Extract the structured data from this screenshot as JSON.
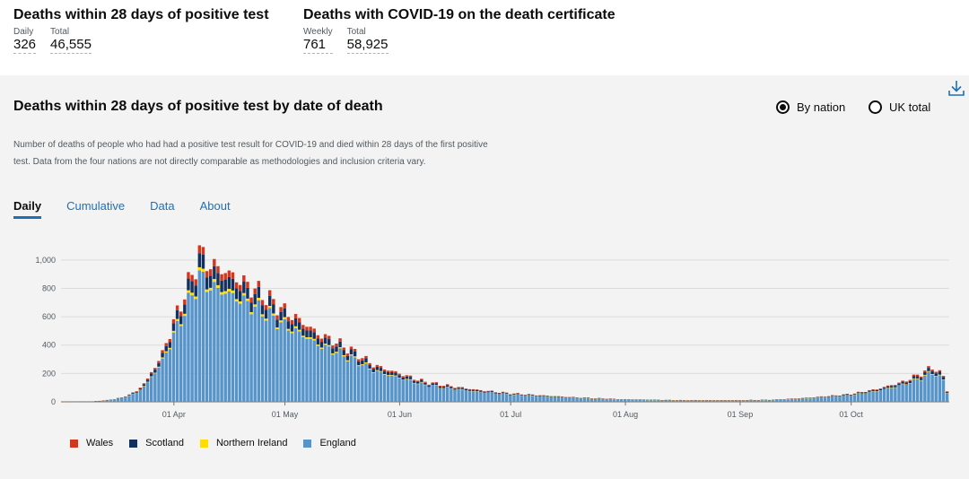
{
  "headline": {
    "left": {
      "title": "Deaths within 28 days of positive test",
      "metrics": [
        {
          "label": "Daily",
          "value": "326"
        },
        {
          "label": "Total",
          "value": "46,555"
        }
      ]
    },
    "right": {
      "title": "Deaths with COVID-19 on the death certificate",
      "metrics": [
        {
          "label": "Weekly",
          "value": "761"
        },
        {
          "label": "Total",
          "value": "58,925"
        }
      ]
    }
  },
  "card": {
    "title": "Deaths within 28 days of positive test by date of death",
    "description": "Number of deaths of people who had had a positive test result for COVID-19 and died within 28 days of the first positive test. Data from the four nations are not directly comparable as methodologies and inclusion criteria vary.",
    "radio": [
      {
        "label": "By nation",
        "selected": true
      },
      {
        "label": "UK total",
        "selected": false
      }
    ],
    "tabs": [
      {
        "label": "Daily",
        "active": true
      },
      {
        "label": "Cumulative",
        "active": false
      },
      {
        "label": "Data",
        "active": false
      },
      {
        "label": "About",
        "active": false
      }
    ],
    "download_icon": "download-icon"
  },
  "colors": {
    "England": "#5694ca",
    "Northern Ireland": "#ffdd00",
    "Scotland": "#12315e",
    "Wales": "#d4351c"
  },
  "chart_data": {
    "type": "bar",
    "stacked": true,
    "x_start": "2020-03-02",
    "x_end": "2020-10-27",
    "x_ticks": [
      "01 Apr",
      "01 May",
      "01 Jun",
      "01 Jul",
      "01 Aug",
      "01 Sep",
      "01 Oct"
    ],
    "x_tick_dates": [
      "2020-04-01",
      "2020-05-01",
      "2020-06-01",
      "2020-07-01",
      "2020-08-01",
      "2020-09-01",
      "2020-10-01"
    ],
    "y_ticks": [
      0,
      200,
      400,
      600,
      800,
      1000
    ],
    "y_tick_labels": [
      "0",
      "200",
      "400",
      "600",
      "800",
      "1,000"
    ],
    "ylim": [
      0,
      1100
    ],
    "grid": true,
    "legend_position": "bottom-left",
    "legend_order": [
      "Wales",
      "Scotland",
      "Northern Ireland",
      "England"
    ],
    "stack_order": [
      "England",
      "Northern Ireland",
      "Scotland",
      "Wales"
    ],
    "totals_keypoints": [
      [
        "2020-03-02",
        1
      ],
      [
        "2020-03-10",
        3
      ],
      [
        "2020-03-14",
        12
      ],
      [
        "2020-03-18",
        30
      ],
      [
        "2020-03-22",
        75
      ],
      [
        "2020-03-25",
        160
      ],
      [
        "2020-03-29",
        340
      ],
      [
        "2020-04-01",
        560
      ],
      [
        "2020-04-04",
        760
      ],
      [
        "2020-04-07",
        960
      ],
      [
        "2020-04-08",
        1060
      ],
      [
        "2020-04-10",
        980
      ],
      [
        "2020-04-15",
        920
      ],
      [
        "2020-04-20",
        840
      ],
      [
        "2020-04-25",
        760
      ],
      [
        "2020-05-01",
        640
      ],
      [
        "2020-05-06",
        560
      ],
      [
        "2020-05-10",
        480
      ],
      [
        "2020-05-15",
        420
      ],
      [
        "2020-05-20",
        350
      ],
      [
        "2020-05-25",
        260
      ],
      [
        "2020-06-01",
        200
      ],
      [
        "2020-06-08",
        140
      ],
      [
        "2020-06-15",
        110
      ],
      [
        "2020-06-22",
        85
      ],
      [
        "2020-07-01",
        60
      ],
      [
        "2020-07-10",
        45
      ],
      [
        "2020-07-20",
        30
      ],
      [
        "2020-08-01",
        18
      ],
      [
        "2020-08-15",
        12
      ],
      [
        "2020-09-01",
        12
      ],
      [
        "2020-09-10",
        15
      ],
      [
        "2020-09-20",
        30
      ],
      [
        "2020-10-01",
        55
      ],
      [
        "2020-10-08",
        90
      ],
      [
        "2020-10-15",
        140
      ],
      [
        "2020-10-20",
        200
      ],
      [
        "2020-10-23",
        245
      ],
      [
        "2020-10-25",
        205
      ],
      [
        "2020-10-26",
        180
      ],
      [
        "2020-10-27",
        80
      ]
    ],
    "share": {
      "Wales": 0.05,
      "Scotland": 0.09,
      "Northern Ireland": 0.02,
      "England": 0.84
    }
  }
}
